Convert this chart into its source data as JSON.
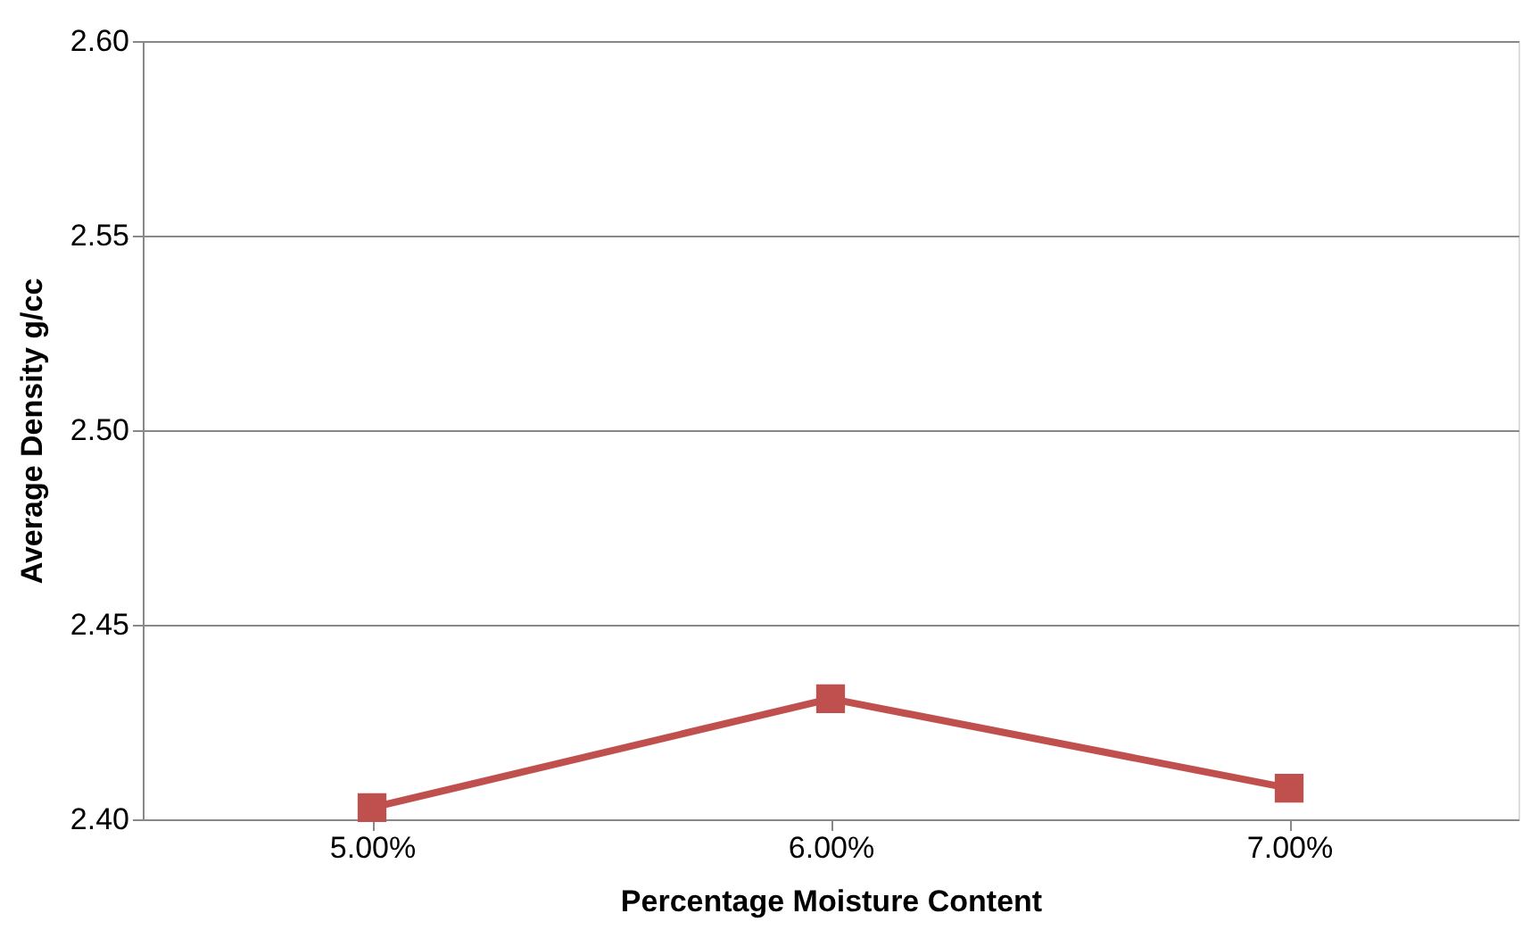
{
  "chart_data": {
    "type": "line",
    "xlabel": "Percentage Moisture Content",
    "ylabel": "Average Density g/cc",
    "categories": [
      "5.00%",
      "6.00%",
      "7.00%"
    ],
    "series": [
      {
        "color": "#c0504d",
        "values": [
          2.403,
          2.431,
          2.408
        ]
      }
    ],
    "ylim": [
      2.4,
      2.6
    ],
    "yticks": [
      {
        "value": 2.4,
        "label": "2.40"
      },
      {
        "value": 2.45,
        "label": "2.45"
      },
      {
        "value": 2.5,
        "label": "2.50"
      },
      {
        "value": 2.55,
        "label": "2.55"
      },
      {
        "value": 2.6,
        "label": "2.60"
      }
    ],
    "grid": "y",
    "legend": false,
    "marker": "square",
    "line_style": "solid"
  }
}
